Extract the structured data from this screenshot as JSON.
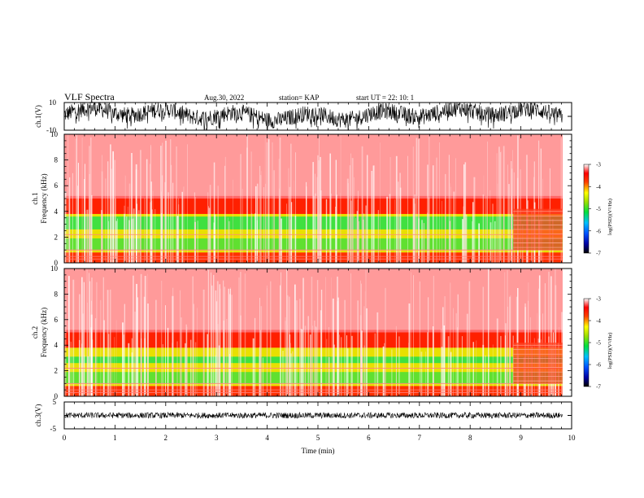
{
  "header": {
    "title": "VLF Spectra",
    "date": "Aug.30, 2022",
    "station": "station= KAP",
    "start": "start UT =  22: 10: 1"
  },
  "chart_data": [
    {
      "type": "line",
      "name": "ch.1 waveform",
      "ylabel": "ch.1(V)",
      "ytick_labels": [
        "10",
        "-10"
      ],
      "ylim": [
        -10,
        10
      ],
      "xlim": [
        0,
        10
      ],
      "data_end_min": 9.82,
      "description_values": {
        "min": -10,
        "max": 10
      }
    },
    {
      "type": "heatmap",
      "name": "ch.1 spectrogram",
      "ylabel": "ch.1 Frequency (kHz)",
      "ylim": [
        0,
        10
      ],
      "yticks": [
        0,
        2,
        4,
        6,
        8,
        10
      ],
      "xlim": [
        0,
        10
      ],
      "data_end_min": 9.82,
      "colorbar": {
        "label": "log(PSD)(V²/Hz)",
        "ticks": [
          -3,
          -4,
          -5,
          -6,
          -7
        ],
        "range": [
          -7,
          -3
        ]
      }
    },
    {
      "type": "heatmap",
      "name": "ch.2 spectrogram",
      "ylabel": "ch.2 Frequency (kHz)",
      "ylim": [
        0,
        10
      ],
      "yticks": [
        0,
        2,
        4,
        6,
        8,
        10
      ],
      "xlim": [
        0,
        10
      ],
      "data_end_min": 9.82,
      "colorbar": {
        "label": "log(PSD)(V²/Hz)",
        "ticks": [
          -3,
          -4,
          -5,
          -6,
          -7
        ],
        "range": [
          -7,
          -3
        ]
      }
    },
    {
      "type": "line",
      "name": "ch.3 waveform",
      "ylabel": "ch.3(V)",
      "ytick_labels": [
        "5",
        "-5"
      ],
      "ylim": [
        -5,
        5
      ],
      "xlim": [
        0,
        10
      ],
      "data_end_min": 9.82,
      "xlabel": "Time (min)",
      "xticks": [
        0,
        1,
        2,
        3,
        4,
        5,
        6,
        7,
        8,
        9,
        10
      ]
    }
  ]
}
